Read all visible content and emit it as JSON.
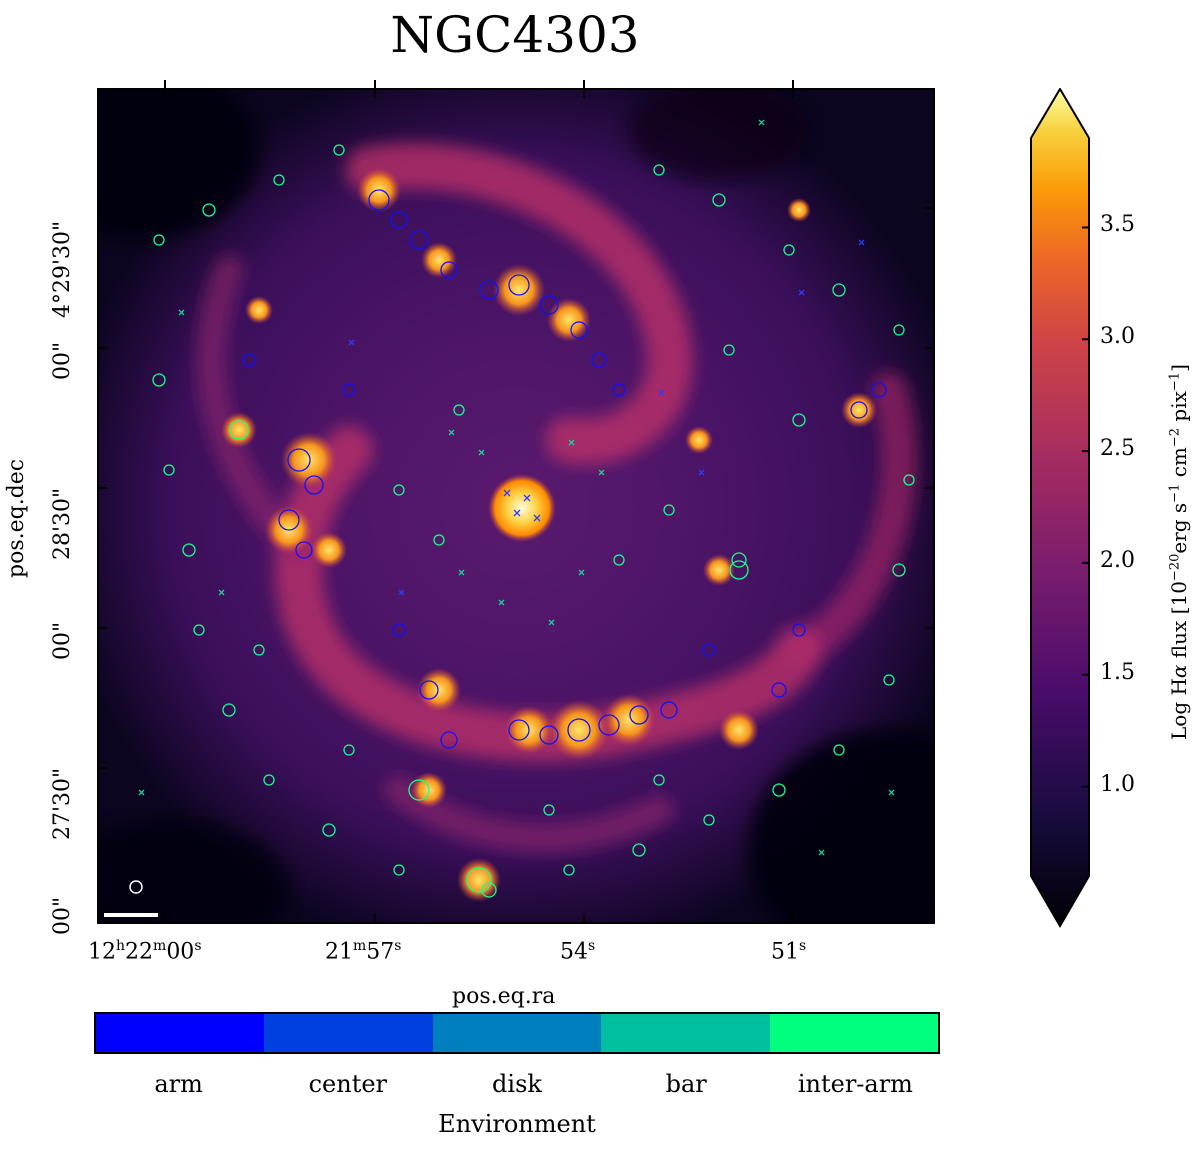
{
  "title": "NGC4303",
  "axes": {
    "xlabel": "pos.eq.ra",
    "ylabel": "pos.eq.dec",
    "x_ticks": [
      {
        "main": "12",
        "h": "h",
        "m1": "22",
        "m": "m",
        "s1": "00",
        "s": "s"
      },
      {
        "main": "21",
        "h": "m",
        "m1": "57",
        "m": "s",
        "s1": "",
        "s": ""
      },
      {
        "main": "54",
        "h": "s",
        "m1": "",
        "m": "",
        "s1": "",
        "s": ""
      },
      {
        "main": "51",
        "h": "s",
        "m1": "",
        "m": "",
        "s1": "",
        "s": ""
      }
    ],
    "y_ticks": [
      "4°29'30\"",
      "00\"",
      "28'30\"",
      "00\"",
      "27'30\"",
      "00\""
    ]
  },
  "colorbar": {
    "label_prefix": "Log H",
    "label_alpha": "α",
    "label_mid": " flux [10",
    "label_exp1": "−20",
    "label_unit1": "erg s",
    "label_exp2": "−1",
    "label_unit2": " cm",
    "label_exp3": "−2",
    "label_unit3": " pix",
    "label_exp4": "−1",
    "label_end": "]",
    "ticks": [
      "3.5",
      "3.0",
      "2.5",
      "2.0",
      "1.5",
      "1.0"
    ],
    "tick_values": [
      3.5,
      3.0,
      2.5,
      2.0,
      1.5,
      1.0
    ],
    "range": [
      0.6,
      3.9
    ],
    "extend": "both",
    "colormap": "inferno"
  },
  "environment": {
    "title": "Environment",
    "categories": [
      {
        "label": "arm",
        "color": "#0000ff"
      },
      {
        "label": "center",
        "color": "#003fe0"
      },
      {
        "label": "disk",
        "color": "#007fbf"
      },
      {
        "label": "bar",
        "color": "#00bf9f"
      },
      {
        "label": "inter-arm",
        "color": "#00ff7f"
      }
    ]
  }
}
